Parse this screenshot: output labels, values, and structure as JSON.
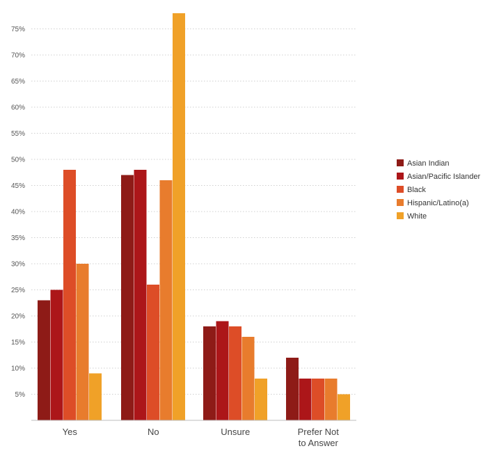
{
  "chart_data": {
    "type": "bar",
    "categories": [
      "Yes",
      "No",
      "Unsure",
      "Prefer Not to Answer"
    ],
    "category_lines": [
      [
        "Yes"
      ],
      [
        "No"
      ],
      [
        "Unsure"
      ],
      [
        "Prefer Not",
        "to Answer"
      ]
    ],
    "series": [
      {
        "name": "Asian Indian",
        "values": [
          23,
          47,
          18,
          12
        ],
        "color": "#8e1b17"
      },
      {
        "name": "Asian/Pacific Islander",
        "values": [
          25,
          48,
          19,
          8
        ],
        "color": "#ac1619"
      },
      {
        "name": "Black",
        "values": [
          48,
          26,
          18,
          8
        ],
        "color": "#dd4d27"
      },
      {
        "name": "Hispanic/Latino(a)",
        "values": [
          30,
          46,
          16,
          8
        ],
        "color": "#e87c2d"
      },
      {
        "name": "White",
        "values": [
          9,
          78,
          8,
          5
        ],
        "color": "#f0a128"
      }
    ],
    "ylim": [
      0,
      78
    ],
    "yticks": [
      5,
      10,
      15,
      20,
      25,
      30,
      35,
      40,
      45,
      50,
      55,
      60,
      65,
      70,
      75
    ],
    "ytick_format": "%",
    "grid": true,
    "legend_position": "right"
  }
}
